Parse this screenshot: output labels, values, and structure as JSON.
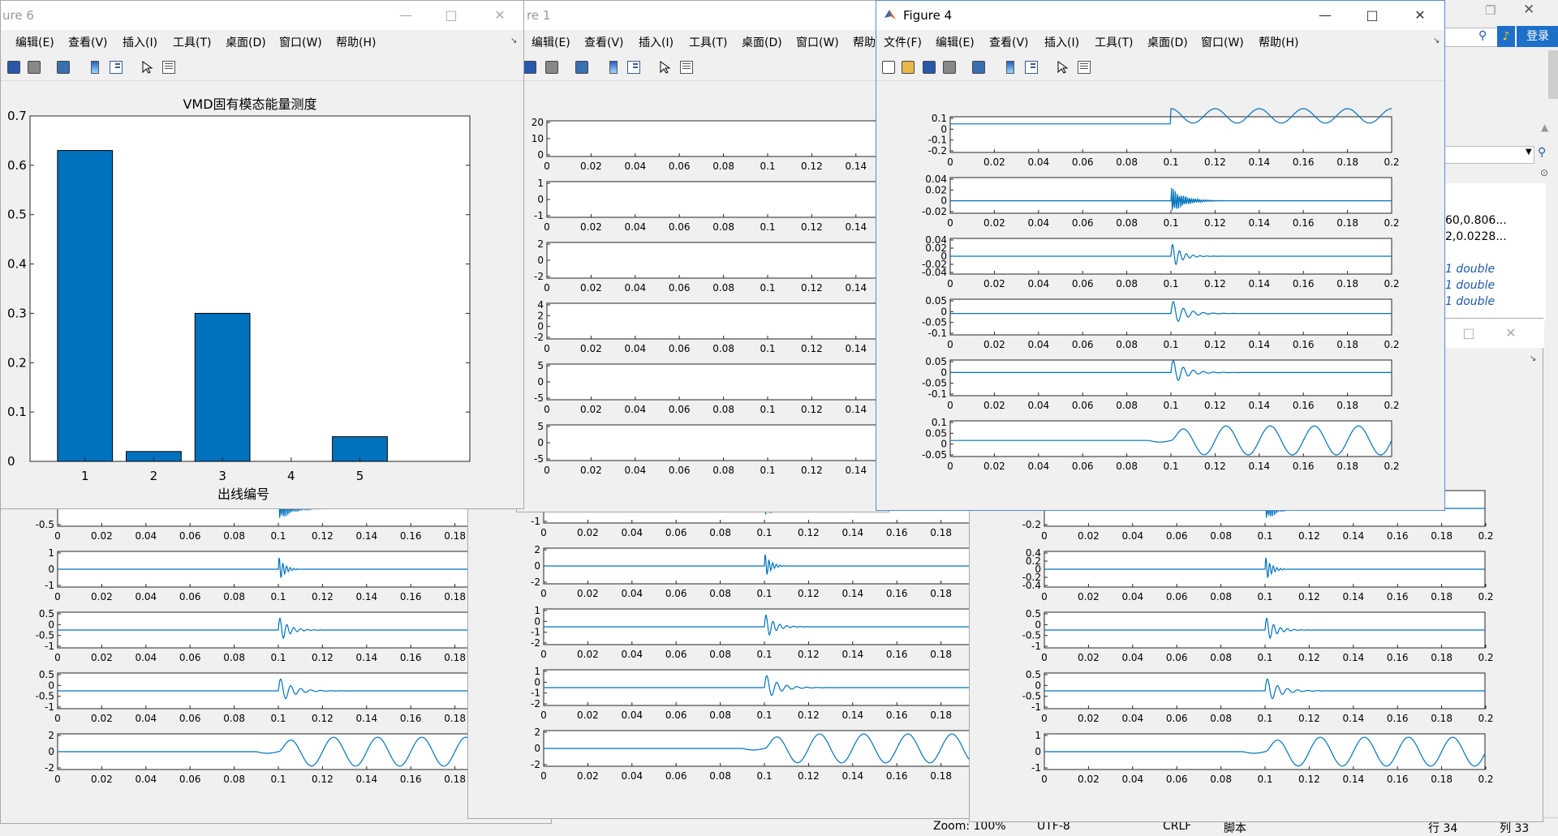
{
  "background_windows": {
    "left": {
      "x": [
        0,
        0.02,
        0.04,
        0.06,
        0.08,
        0.1,
        0.12,
        0.14,
        0.16,
        0.18
      ],
      "axes_yticks": [
        [
          "0",
          "-0.5"
        ],
        [
          "1",
          "0",
          "-1"
        ],
        [
          "0.5",
          "0",
          "-0.5",
          "-1"
        ],
        [
          "0.5",
          "0",
          "-0.5",
          "-1"
        ],
        [
          "2",
          "0",
          "-2"
        ]
      ]
    },
    "middle": {
      "x": [
        0,
        0.02,
        0.04,
        0.06,
        0.08,
        0.1,
        0.12,
        0.14,
        0.16,
        0.18
      ],
      "axes_yticks": [
        [
          "-1"
        ],
        [
          "2",
          "0",
          "-2"
        ],
        [
          "1",
          "0",
          "-1",
          "-2"
        ],
        [
          "1",
          "0",
          "-1",
          "-2"
        ],
        [
          "2",
          "0",
          "-2"
        ]
      ]
    },
    "right": {
      "title_ctrls": [
        "□",
        "✕"
      ],
      "x": [
        0,
        0.02,
        0.04,
        0.06,
        0.08,
        0.1,
        0.12,
        0.14,
        0.16,
        0.18,
        0.2
      ],
      "axes_yticks": [
        [
          "0",
          "-0.2"
        ],
        [
          "0.4",
          "0.2",
          "0",
          "-0.2",
          "-0.4"
        ],
        [
          "0.5",
          "0",
          "-0.5",
          "-1"
        ],
        [
          "0.5",
          "0",
          "-0.5",
          "-1"
        ],
        [
          "1",
          "0",
          "-1"
        ]
      ]
    }
  },
  "matlab_main": {
    "login_label": "登录",
    "workspace_values": [
      "60,0.806...",
      "2,0.0228...",
      "1 double",
      "1 double",
      "1 double",
      "1 double"
    ]
  },
  "status_bar": {
    "zoom": "Zoom: 100%",
    "encoding": "UTF-8",
    "eol": "CRLF",
    "script": "脚本",
    "ln": "行 34",
    "col": "列 33"
  },
  "figure6": {
    "title": "ure 6",
    "menus": [
      "编辑(E)",
      "查看(V)",
      "插入(I)",
      "工具(T)",
      "桌面(D)",
      "窗口(W)",
      "帮助(H)"
    ],
    "chart_data": {
      "type": "bar",
      "title": "VMD固有模态能量测度",
      "xlabel": "出线编号",
      "ylabel": "",
      "categories": [
        "1",
        "2",
        "3",
        "4",
        "5"
      ],
      "values": [
        0.63,
        0.02,
        0.3,
        0.0,
        0.05
      ],
      "ylim": [
        0,
        0.7
      ],
      "yticks": [
        "0",
        "0.1",
        "0.2",
        "0.3",
        "0.4",
        "0.5",
        "0.6",
        "0.7"
      ],
      "color": "#0072bd"
    }
  },
  "figure1": {
    "title": "re 1",
    "menus": [
      "编辑(E)",
      "查看(V)",
      "插入(I)",
      "工具(T)",
      "桌面(D)",
      "窗口(W)",
      "帮助"
    ],
    "chart_data": {
      "type": "line",
      "x_ticks": [
        "0",
        "0.02",
        "0.04",
        "0.06",
        "0.08",
        "0.1",
        "0.12",
        "0.14"
      ],
      "axes": [
        {
          "yticks": [
            "20",
            "10",
            "0"
          ]
        },
        {
          "yticks": [
            "1",
            "0",
            "-1"
          ]
        },
        {
          "yticks": [
            "2",
            "0",
            "-2"
          ]
        },
        {
          "yticks": [
            "4",
            "2",
            "0",
            "-2"
          ]
        },
        {
          "yticks": [
            "5",
            "0",
            "-5"
          ]
        },
        {
          "yticks": [
            "5",
            "0",
            "-5"
          ]
        }
      ]
    }
  },
  "figure4": {
    "title": "Figure 4",
    "menus": [
      "文件(F)",
      "编辑(E)",
      "查看(V)",
      "插入(I)",
      "工具(T)",
      "桌面(D)",
      "窗口(W)",
      "帮助(H)"
    ],
    "chart_data": {
      "type": "line",
      "x_ticks": [
        "0",
        "0.02",
        "0.04",
        "0.06",
        "0.08",
        "0.1",
        "0.12",
        "0.14",
        "0.16",
        "0.18",
        "0.2"
      ],
      "axes": [
        {
          "yticks": [
            "0.1",
            "0",
            "-0.1",
            "-0.2"
          ]
        },
        {
          "yticks": [
            "0.04",
            "0.02",
            "0",
            "-0.02"
          ]
        },
        {
          "yticks": [
            "0.04",
            "0.02",
            "0",
            "-0.02",
            "-0.04"
          ]
        },
        {
          "yticks": [
            "0.05",
            "0",
            "-0.05",
            "-0.1"
          ]
        },
        {
          "yticks": [
            "0.05",
            "0",
            "-0.05",
            "-0.1"
          ]
        },
        {
          "yticks": [
            "0.1",
            "0.05",
            "0",
            "-0.05"
          ]
        }
      ]
    }
  },
  "colors": {
    "line": "#0072bd",
    "axes_bg": "#ffffff",
    "fig_bg": "#f0f0f0"
  }
}
